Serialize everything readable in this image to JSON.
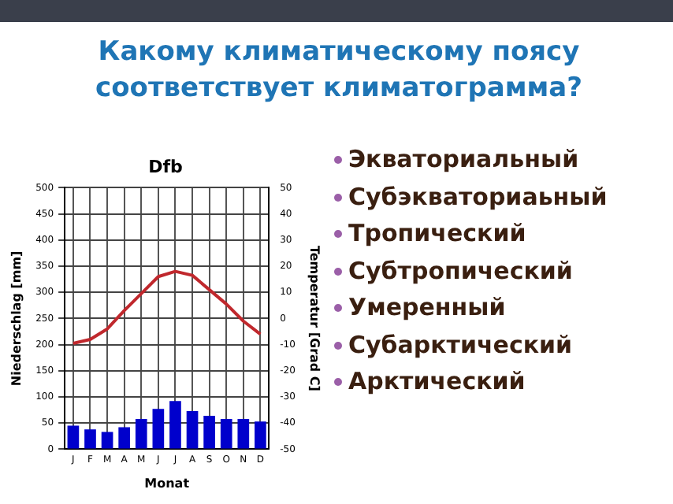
{
  "chart_data": {
    "type": "bar",
    "title": "Dfb",
    "xlabel": "Monat",
    "ylabel": "Niederschlag [mm]",
    "y2label": "Temperatur [Grad C]",
    "categories": [
      "J",
      "F",
      "M",
      "A",
      "M",
      "J",
      "J",
      "A",
      "S",
      "O",
      "N",
      "D"
    ],
    "series": [
      {
        "type": "bar",
        "color": "#0000cc",
        "values": [
          45,
          38,
          33,
          42,
          58,
          77,
          92,
          73,
          64,
          58,
          58,
          53
        ]
      },
      {
        "type": "line",
        "axis": "y2",
        "color": "#c0282d",
        "values": [
          -9.5,
          -8,
          -4,
          3,
          9.5,
          16,
          18,
          16.5,
          11,
          5.5,
          -1,
          -6
        ]
      }
    ],
    "ylim": [
      0,
      500
    ],
    "yticks": [
      0,
      50,
      100,
      150,
      200,
      250,
      300,
      350,
      400,
      450,
      500
    ],
    "y2lim": [
      -50,
      50
    ],
    "y2ticks": [
      -50,
      -40,
      -30,
      -20,
      -10,
      0,
      10,
      20,
      30,
      40,
      50
    ],
    "grid": true,
    "legend": false,
    "marker": "none",
    "line_style": "solid",
    "annotations": [
      "Какому климатическому поясу соответствует климатограмма?",
      "Экваториальный",
      "Субэкваториаьный",
      "Тропический",
      "Субтропический",
      "Умеренный",
      "Субарктический",
      "Арктический"
    ]
  }
}
